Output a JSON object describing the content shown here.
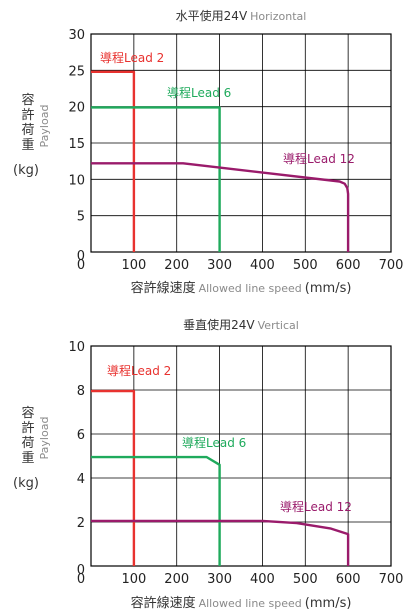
{
  "chart_data": [
    {
      "type": "line",
      "title_main": "水平使用24V",
      "title_en": "Horizontal",
      "xlabel_main": "容許線速度",
      "xlabel_en": "Allowed line speed",
      "xlabel_unit": "(mm/s)",
      "ylabel_chars": [
        "容",
        "許",
        "荷",
        "重"
      ],
      "ylabel_en": "Payload",
      "ylabel_unit": "(kg)",
      "xlim": [
        0,
        700
      ],
      "ylim": [
        0,
        30
      ],
      "xticks": [
        "0",
        "100",
        "200",
        "300",
        "400",
        "500",
        "600",
        "700"
      ],
      "yticks": [
        "0",
        "5",
        "10",
        "15",
        "20",
        "25",
        "30"
      ],
      "grid": true,
      "series": [
        {
          "name": "導程Lead 2",
          "color": "#e8322f",
          "x": [
            0,
            100,
            100
          ],
          "y": [
            24.8,
            24.8,
            0
          ]
        },
        {
          "name": "導程Lead 6",
          "color": "#1faa5c",
          "x": [
            0,
            300,
            300
          ],
          "y": [
            19.9,
            19.9,
            0
          ]
        },
        {
          "name": "導程Lead 12",
          "color": "#9a1b6b",
          "x": [
            0,
            215,
            580,
            592,
            598,
            600,
            600
          ],
          "y": [
            12.2,
            12.2,
            9.7,
            9.4,
            8.8,
            8.0,
            0
          ]
        }
      ]
    },
    {
      "type": "line",
      "title_main": "垂直使用24V",
      "title_en": "Vertical",
      "xlabel_main": "容許線速度",
      "xlabel_en": "Allowed line speed",
      "xlabel_unit": "(mm/s)",
      "ylabel_chars": [
        "容",
        "許",
        "荷",
        "重"
      ],
      "ylabel_en": "Payload",
      "ylabel_unit": "(kg)",
      "xlim": [
        0,
        700
      ],
      "ylim": [
        0,
        10
      ],
      "xticks": [
        "0",
        "100",
        "200",
        "300",
        "400",
        "500",
        "600",
        "700"
      ],
      "yticks": [
        "0",
        "2",
        "4",
        "6",
        "8",
        "10"
      ],
      "grid": true,
      "series": [
        {
          "name": "導程Lead 2",
          "color": "#e8322f",
          "x": [
            0,
            100,
            100
          ],
          "y": [
            7.95,
            7.95,
            0
          ]
        },
        {
          "name": "導程Lead 6",
          "color": "#1faa5c",
          "x": [
            0,
            270,
            300,
            300
          ],
          "y": [
            4.95,
            4.95,
            4.6,
            0
          ]
        },
        {
          "name": "導程Lead 12",
          "color": "#9a1b6b",
          "x": [
            0,
            400,
            480,
            560,
            600,
            600
          ],
          "y": [
            2.05,
            2.05,
            1.95,
            1.7,
            1.45,
            0
          ]
        }
      ]
    }
  ]
}
